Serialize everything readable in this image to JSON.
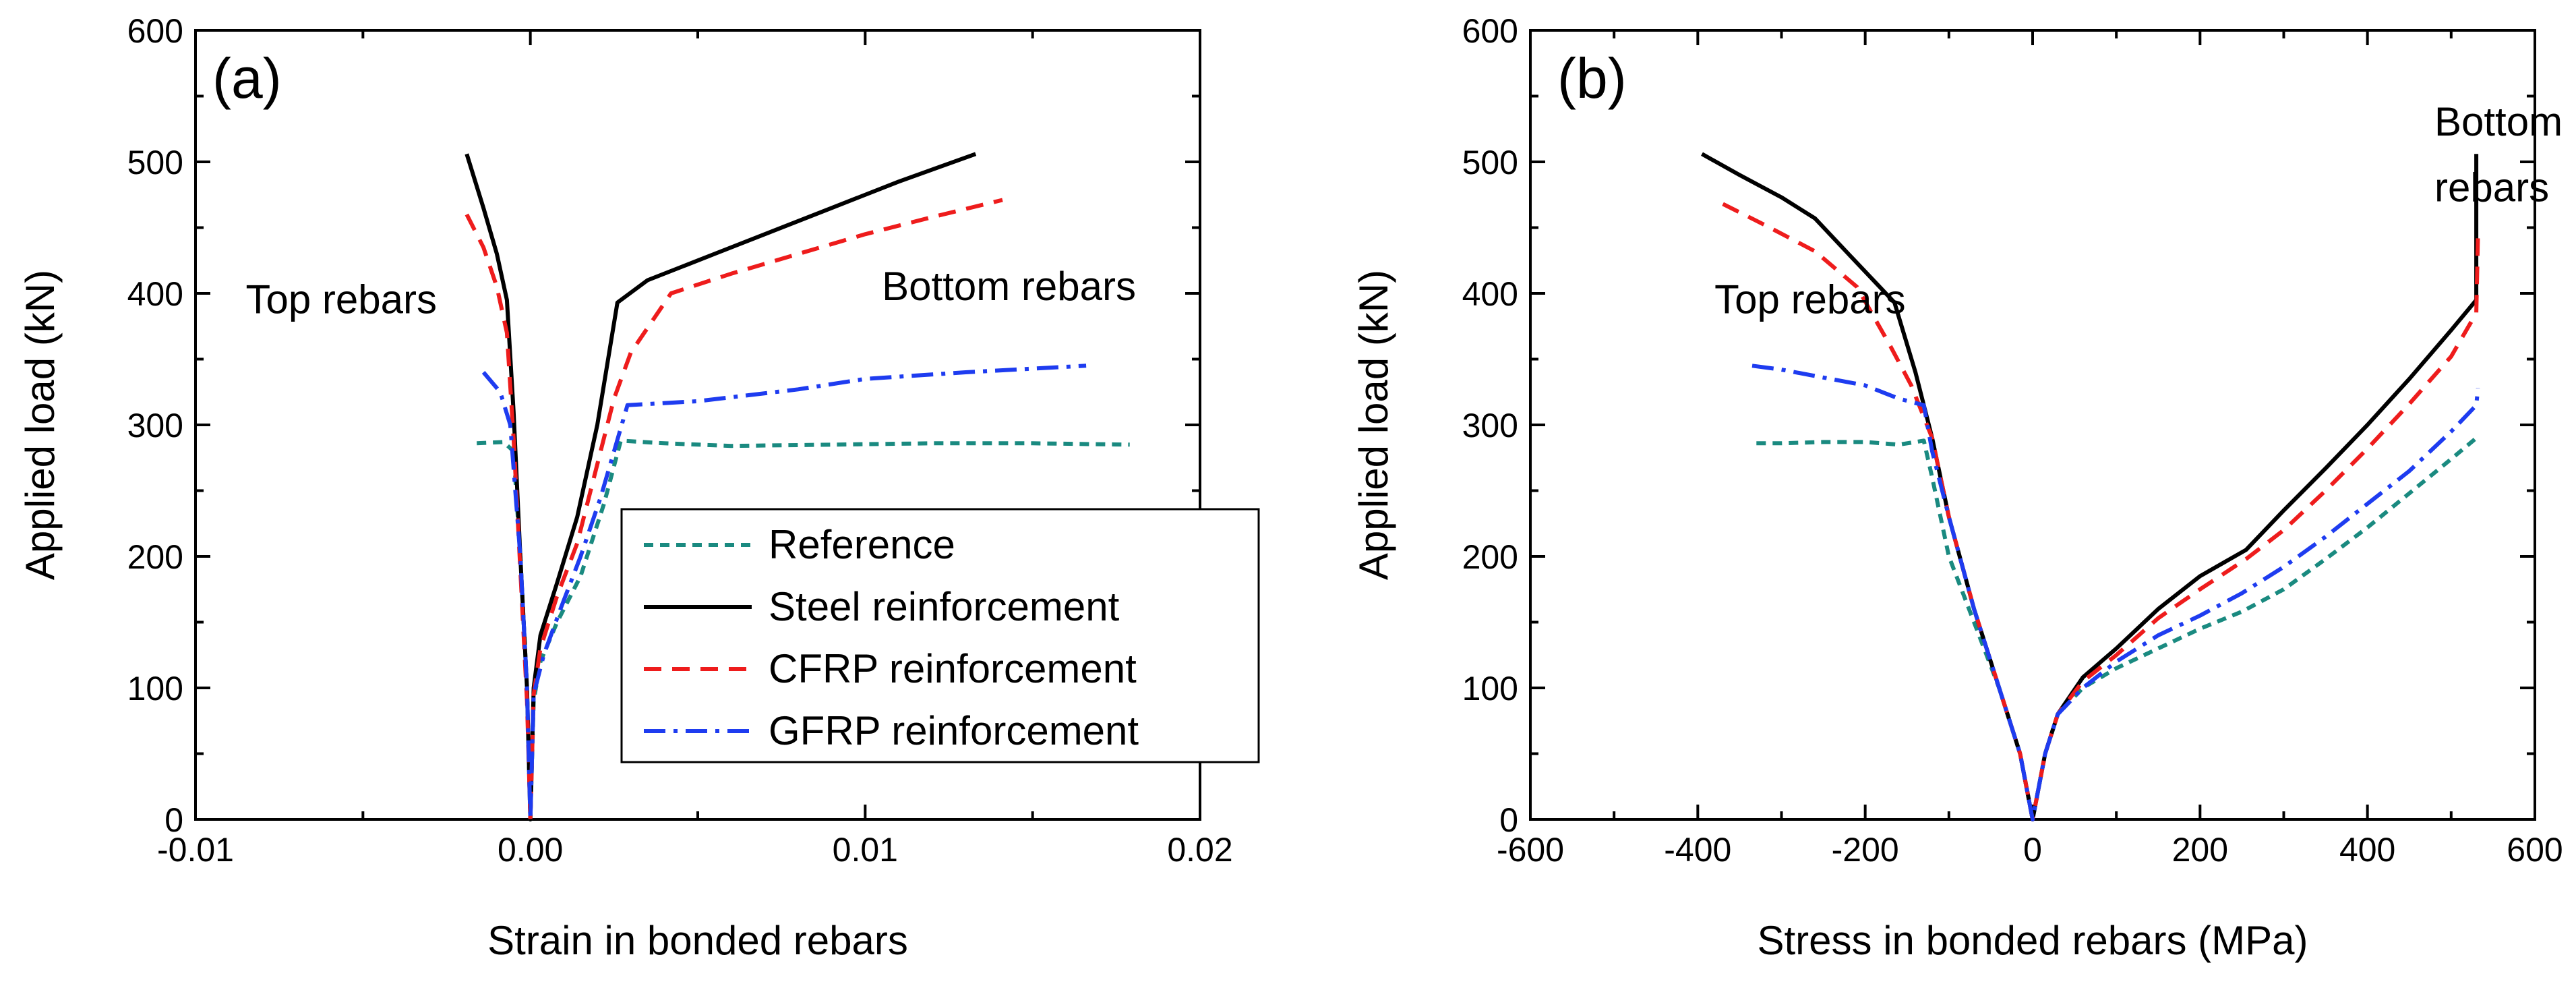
{
  "chart_data": [
    {
      "type": "line",
      "panel_label": "(a)",
      "xlabel": "Strain in bonded rebars",
      "ylabel": "Applied load (kN)",
      "xlim": [
        -0.01,
        0.02
      ],
      "ylim": [
        0,
        600
      ],
      "xticks": [
        -0.01,
        0.0,
        0.01,
        0.02
      ],
      "xtick_labels": [
        "-0.01",
        "0.00",
        "0.01",
        "0.02"
      ],
      "yticks": [
        0,
        100,
        200,
        300,
        400,
        500,
        600
      ],
      "ytick_labels": [
        "0",
        "100",
        "200",
        "300",
        "400",
        "500",
        "600"
      ],
      "annotations": [
        {
          "text": "Top rebars",
          "x": -0.0085,
          "y": 385
        },
        {
          "text": "Bottom rebars",
          "x": 0.0105,
          "y": 395
        }
      ],
      "legend": {
        "position": "center-right",
        "entries": [
          "Reference",
          "Steel reinforcement",
          "CFRP reinforcement",
          "GFRP reinforcement"
        ]
      },
      "series": [
        {
          "name": "Reference",
          "color": "#1a8a80",
          "dash": "14 10",
          "x": [
            -0.0016,
            -0.0008,
            -0.0005,
            -0.0003,
            -0.0001,
            0.0,
            0.0001,
            0.0003,
            0.0008,
            0.0015,
            0.0022,
            0.0027,
            0.004,
            0.006,
            0.009,
            0.012,
            0.015,
            0.0179
          ],
          "y": [
            286,
            287,
            280,
            200,
            100,
            0,
            90,
            120,
            150,
            185,
            240,
            288,
            286,
            284,
            285,
            286,
            286,
            285
          ]
        },
        {
          "name": "Steel reinforcement",
          "color": "#000000",
          "dash": "",
          "x": [
            -0.0019,
            -0.0014,
            -0.001,
            -0.0007,
            -0.0005,
            -0.0003,
            -0.0001,
            0.0,
            0.0001,
            0.0003,
            0.0008,
            0.0014,
            0.002,
            0.0026,
            0.0035,
            0.0045,
            0.0055,
            0.007,
            0.009,
            0.011,
            0.0133
          ],
          "y": [
            506,
            465,
            430,
            395,
            310,
            200,
            100,
            0,
            100,
            140,
            180,
            230,
            300,
            393,
            410,
            420,
            430,
            445,
            465,
            485,
            506
          ]
        },
        {
          "name": "CFRP reinforcement",
          "color": "#ee1c1c",
          "dash": "26 16",
          "x": [
            -0.0019,
            -0.0014,
            -0.001,
            -0.0007,
            -0.0005,
            -0.0003,
            -0.0001,
            0.0,
            0.0001,
            0.0003,
            0.0008,
            0.0014,
            0.0019,
            0.0025,
            0.003,
            0.0042,
            0.006,
            0.008,
            0.01,
            0.012,
            0.0141
          ],
          "y": [
            460,
            435,
            405,
            370,
            290,
            190,
            90,
            0,
            95,
            130,
            170,
            210,
            260,
            320,
            355,
            400,
            415,
            430,
            445,
            458,
            471
          ]
        },
        {
          "name": "GFRP reinforcement",
          "color": "#1e3cf0",
          "dash": "32 12 6 12",
          "x": [
            -0.0014,
            -0.0009,
            -0.0006,
            -0.0003,
            -0.0001,
            0.0,
            0.0001,
            0.0004,
            0.0009,
            0.0015,
            0.0021,
            0.0029,
            0.005,
            0.008,
            0.01,
            0.013,
            0.0166
          ],
          "y": [
            340,
            325,
            300,
            200,
            100,
            0,
            95,
            125,
            160,
            200,
            245,
            315,
            318,
            327,
            335,
            340,
            345
          ]
        }
      ]
    },
    {
      "type": "line",
      "panel_label": "(b)",
      "xlabel": "Stress in bonded rebars (MPa)",
      "ylabel": "Applied load (kN)",
      "xlim": [
        -600,
        600
      ],
      "ylim": [
        0,
        600
      ],
      "xticks": [
        -600,
        -400,
        -200,
        0,
        200,
        400,
        600
      ],
      "xtick_labels": [
        "-600",
        "-400",
        "-200",
        "0",
        "200",
        "400",
        "600"
      ],
      "yticks": [
        0,
        100,
        200,
        300,
        400,
        500,
        600
      ],
      "ytick_labels": [
        "0",
        "100",
        "200",
        "300",
        "400",
        "500",
        "600"
      ],
      "annotations": [
        {
          "text": "Top rebars",
          "x": -380,
          "y": 385
        },
        {
          "text": "Bottom",
          "x": 480,
          "y": 520
        },
        {
          "text": "rebars",
          "x": 480,
          "y": 470
        }
      ],
      "series": [
        {
          "name": "Reference",
          "color": "#1a8a80",
          "dash": "14 10",
          "x": [
            -330,
            -300,
            -250,
            -200,
            -160,
            -130,
            -120,
            -100,
            -70,
            -40,
            -15,
            0,
            15,
            30,
            60,
            100,
            150,
            200,
            250,
            300,
            350,
            400,
            450,
            500,
            530
          ],
          "y": [
            286,
            286,
            287,
            287,
            285,
            288,
            260,
            200,
            150,
            100,
            50,
            0,
            50,
            80,
            100,
            115,
            130,
            145,
            158,
            175,
            198,
            222,
            248,
            274,
            290
          ]
        },
        {
          "name": "Steel reinforcement",
          "color": "#000000",
          "dash": "",
          "x": [
            -395,
            -350,
            -300,
            -260,
            -220,
            -165,
            -140,
            -120,
            -100,
            -70,
            -40,
            -15,
            0,
            15,
            30,
            60,
            100,
            150,
            200,
            255,
            300,
            350,
            400,
            450,
            500,
            530,
            530
          ],
          "y": [
            506,
            490,
            473,
            457,
            430,
            393,
            340,
            290,
            230,
            160,
            100,
            50,
            0,
            50,
            80,
            108,
            130,
            160,
            185,
            205,
            235,
            267,
            300,
            335,
            372,
            395,
            506
          ]
        },
        {
          "name": "CFRP reinforcement",
          "color": "#ee1c1c",
          "dash": "26 16",
          "x": [
            -370,
            -320,
            -260,
            -210,
            -170,
            -145,
            -120,
            -100,
            -70,
            -40,
            -15,
            0,
            15,
            30,
            60,
            100,
            150,
            200,
            255,
            300,
            350,
            400,
            450,
            500,
            530,
            532
          ],
          "y": [
            468,
            452,
            432,
            405,
            360,
            330,
            290,
            230,
            160,
            100,
            50,
            0,
            50,
            80,
            105,
            125,
            153,
            175,
            198,
            220,
            250,
            282,
            316,
            352,
            385,
            445
          ]
        },
        {
          "name": "GFRP reinforcement",
          "color": "#1e3cf0",
          "dash": "32 12 6 12",
          "x": [
            -335,
            -300,
            -250,
            -200,
            -160,
            -130,
            -120,
            -100,
            -70,
            -40,
            -15,
            0,
            15,
            30,
            60,
            100,
            150,
            200,
            250,
            300,
            350,
            400,
            450,
            500,
            530,
            532
          ],
          "y": [
            345,
            342,
            336,
            330,
            320,
            315,
            280,
            230,
            160,
            100,
            50,
            0,
            50,
            80,
            100,
            120,
            140,
            155,
            172,
            192,
            215,
            240,
            265,
            295,
            315,
            328
          ]
        }
      ]
    }
  ]
}
